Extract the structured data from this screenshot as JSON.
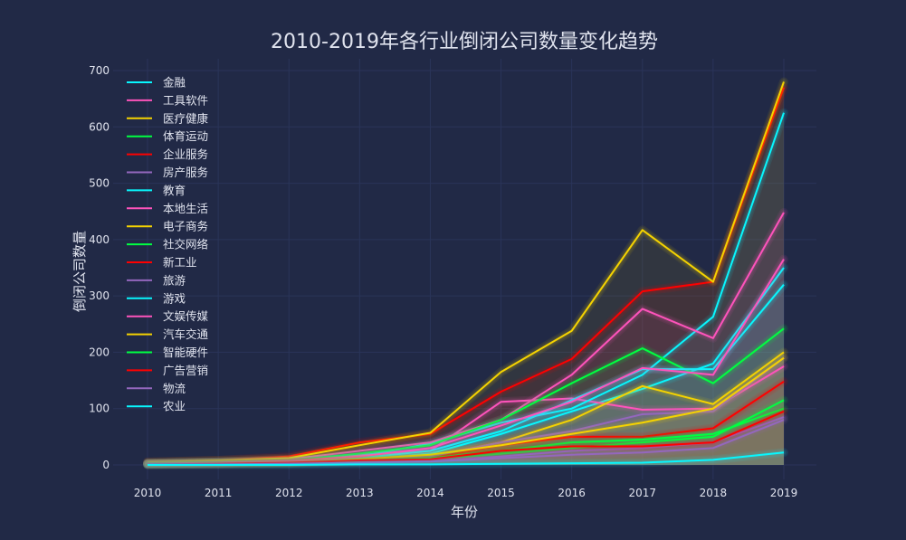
{
  "chart_data": {
    "type": "line",
    "title": "2010-2019年各行业倒闭公司数量变化趋势",
    "xlabel": "年份",
    "ylabel": "倒闭公司数量",
    "x": [
      2010,
      2011,
      2012,
      2013,
      2014,
      2015,
      2016,
      2017,
      2018,
      2019
    ],
    "ylim": [
      -30,
      720
    ],
    "yticks": [
      0,
      100,
      200,
      300,
      400,
      500,
      600,
      700
    ],
    "grid": true,
    "legend_position": "top-left",
    "series": [
      {
        "name": "金融",
        "color": "#08F7FE",
        "values": [
          2,
          3,
          5,
          10,
          20,
          55,
          95,
          135,
          180,
          350
        ]
      },
      {
        "name": "工具软件",
        "color": "#FE53BB",
        "values": [
          3,
          5,
          8,
          18,
          25,
          112,
          118,
          98,
          100,
          175
        ]
      },
      {
        "name": "医疗健康",
        "color": "#F5D300",
        "values": [
          2,
          3,
          5,
          8,
          15,
          40,
          80,
          140,
          108,
          200
        ]
      },
      {
        "name": "体育运动",
        "color": "#00ff41",
        "values": [
          1,
          2,
          3,
          5,
          8,
          20,
          30,
          40,
          50,
          115
        ]
      },
      {
        "name": "企业服务",
        "color": "#FF0000",
        "values": [
          5,
          8,
          15,
          40,
          55,
          130,
          188,
          308,
          325,
          670
        ]
      },
      {
        "name": "房产服务",
        "color": "#9467bd",
        "values": [
          1,
          2,
          3,
          5,
          8,
          15,
          25,
          30,
          40,
          85
        ]
      },
      {
        "name": "教育",
        "color": "#08F7FE",
        "values": [
          3,
          5,
          8,
          15,
          38,
          75,
          100,
          160,
          263,
          625
        ]
      },
      {
        "name": "本地生活",
        "color": "#FE53BB",
        "values": [
          3,
          5,
          10,
          25,
          40,
          80,
          160,
          277,
          225,
          448
        ]
      },
      {
        "name": "电子商务",
        "color": "#F5D300",
        "values": [
          5,
          8,
          12,
          35,
          57,
          165,
          238,
          417,
          325,
          680
        ]
      },
      {
        "name": "社交网络",
        "color": "#00ff41",
        "values": [
          3,
          5,
          8,
          20,
          35,
          80,
          145,
          207,
          145,
          242
        ]
      },
      {
        "name": "新工业",
        "color": "#FF0000",
        "values": [
          1,
          2,
          4,
          8,
          12,
          35,
          50,
          50,
          65,
          148
        ]
      },
      {
        "name": "旅游",
        "color": "#9467bd",
        "values": [
          2,
          3,
          5,
          10,
          15,
          40,
          60,
          90,
          95,
          190
        ]
      },
      {
        "name": "游戏",
        "color": "#08F7FE",
        "values": [
          2,
          4,
          6,
          12,
          25,
          60,
          115,
          170,
          170,
          320
        ]
      },
      {
        "name": "文娱传媒",
        "color": "#FE53BB",
        "values": [
          2,
          4,
          7,
          15,
          30,
          70,
          112,
          172,
          160,
          365
        ]
      },
      {
        "name": "汽车交通",
        "color": "#F5D300",
        "values": [
          1,
          2,
          4,
          10,
          18,
          35,
          55,
          75,
          100,
          190
        ]
      },
      {
        "name": "智能硬件",
        "color": "#00ff41",
        "values": [
          1,
          2,
          3,
          8,
          12,
          25,
          40,
          45,
          55,
          100
        ]
      },
      {
        "name": "广告营销",
        "color": "#FF0000",
        "values": [
          1,
          2,
          4,
          8,
          10,
          25,
          33,
          33,
          40,
          95
        ]
      },
      {
        "name": "物流",
        "color": "#9467bd",
        "values": [
          1,
          1,
          2,
          4,
          6,
          12,
          18,
          22,
          30,
          80
        ]
      },
      {
        "name": "农业",
        "color": "#08F7FE",
        "values": [
          0,
          0,
          0,
          1,
          1,
          2,
          3,
          4,
          9,
          22
        ]
      }
    ]
  }
}
